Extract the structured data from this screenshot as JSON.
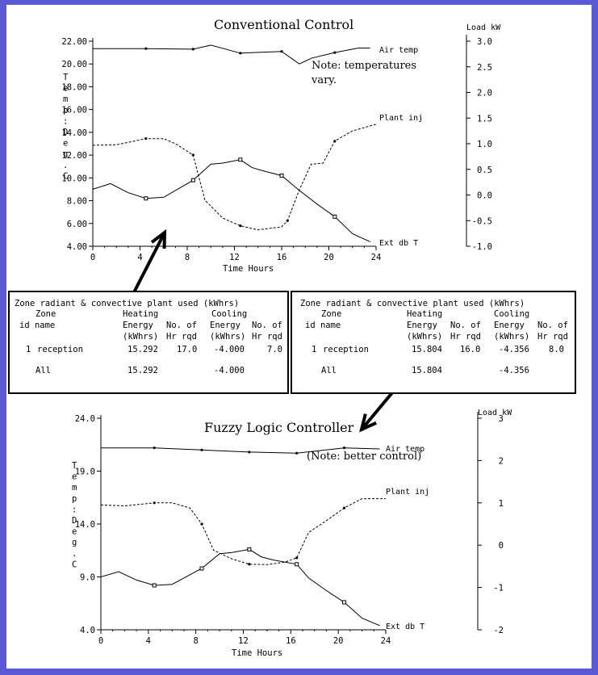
{
  "colors": {
    "background": "#5a5ad6",
    "panel": "#ffffff",
    "ink": "#000000"
  },
  "chart_data": [
    {
      "type": "line",
      "title": "Conventional Control",
      "note": [
        "Note: temperatures",
        "vary."
      ],
      "xlabel": "Time Hours",
      "ylabel": [
        "T",
        "e",
        "m",
        "p",
        ":",
        "D",
        "e",
        "g",
        ".",
        "C"
      ],
      "ylabel_right": "Load kW",
      "xlim": [
        0,
        24
      ],
      "ylim": [
        4.0,
        22.0
      ],
      "ylim_right": [
        -1.0,
        3.0
      ],
      "xticks": [
        "0",
        "4",
        "8",
        "12",
        "16",
        "20",
        "24"
      ],
      "yticks": [
        "4.00",
        "6.00",
        "8.00",
        "10.00",
        "12.00",
        "14.00",
        "16.00",
        "18.00",
        "20.00",
        "22.00"
      ],
      "yticks_right": [
        "-1.0",
        "-0.5",
        "0.0",
        "0.5",
        "1.0",
        "1.5",
        "2.0",
        "2.5",
        "3.0"
      ],
      "series": [
        {
          "name": "Air temp",
          "axis": "left",
          "style": "solid",
          "marker": "dot",
          "x": [
            0,
            4.5,
            8.5,
            10,
            12.5,
            16,
            17.5,
            18.5,
            20.5,
            22.5,
            23.5
          ],
          "y": [
            21.35,
            21.35,
            21.3,
            21.65,
            20.95,
            21.1,
            20.0,
            20.5,
            21.0,
            21.4,
            21.4
          ],
          "markers_x": [
            4.5,
            8.5,
            12.5,
            16,
            20.5
          ]
        },
        {
          "name": "Plant inj",
          "axis": "right",
          "style": "dashed",
          "marker": "dot",
          "x": [
            0,
            2,
            4.5,
            6,
            7,
            8.5,
            9.5,
            11,
            12.5,
            14,
            16,
            16.5,
            17.5,
            18.5,
            19.5,
            20.5,
            22,
            24
          ],
          "y": [
            0.97,
            0.98,
            1.1,
            1.1,
            1.0,
            0.78,
            -0.1,
            -0.45,
            -0.6,
            -0.68,
            -0.62,
            -0.5,
            0.1,
            0.6,
            0.62,
            1.05,
            1.25,
            1.38
          ],
          "markers_x": [
            4.5,
            8.5,
            12.5,
            16.5,
            20.5
          ]
        },
        {
          "name": "Ext db T",
          "axis": "left",
          "style": "solid",
          "marker": "square",
          "x": [
            0,
            1.5,
            3,
            4.5,
            6,
            7,
            8.5,
            10,
            11,
            12.5,
            13.5,
            14.5,
            16,
            17.5,
            19,
            20.5,
            22,
            23.5
          ],
          "y": [
            9.0,
            9.5,
            8.7,
            8.2,
            8.3,
            8.9,
            9.8,
            11.2,
            11.3,
            11.6,
            10.9,
            10.6,
            10.2,
            8.9,
            7.7,
            6.6,
            5.1,
            4.4
          ],
          "markers_x": [
            4.5,
            8.5,
            12.5,
            16,
            20.5
          ]
        }
      ]
    },
    {
      "type": "line",
      "title": "Fuzzy Logic Controller",
      "note": [
        "(Note: better control)"
      ],
      "xlabel": "Time Hours",
      "ylabel": [
        "T",
        "e",
        "m",
        "p",
        ":",
        "D",
        "e",
        "g",
        ".",
        "C"
      ],
      "ylabel_right": "Load kW",
      "xlim": [
        0,
        24
      ],
      "ylim": [
        4.0,
        24.0
      ],
      "ylim_right": [
        -2,
        3
      ],
      "xticks": [
        "0",
        "4",
        "8",
        "12",
        "16",
        "20",
        "24"
      ],
      "yticks": [
        "4.0",
        "9.0",
        "14.0",
        "19.0",
        "24.0"
      ],
      "yticks_right": [
        "-2",
        "-1",
        "0",
        "1",
        "2",
        "3"
      ],
      "series": [
        {
          "name": "Air temp",
          "axis": "left",
          "style": "solid",
          "marker": "dot",
          "x": [
            0,
            4.5,
            8.5,
            12.5,
            16.5,
            20.5,
            23.5
          ],
          "y": [
            21.2,
            21.2,
            21.0,
            20.8,
            20.7,
            21.2,
            21.1
          ],
          "markers_x": [
            4.5,
            8.5,
            12.5,
            16.5,
            20.5
          ]
        },
        {
          "name": "Plant inj",
          "axis": "right",
          "style": "dashed",
          "marker": "dot",
          "x": [
            0,
            2,
            4.5,
            6,
            7.5,
            8.5,
            9.5,
            11,
            12.5,
            14,
            15.5,
            16.5,
            17.5,
            19,
            20.5,
            22,
            24
          ],
          "y": [
            0.95,
            0.93,
            1.0,
            1.0,
            0.88,
            0.5,
            -0.12,
            -0.32,
            -0.45,
            -0.46,
            -0.4,
            -0.3,
            0.3,
            0.58,
            0.88,
            1.1,
            1.1
          ],
          "markers_x": [
            4.5,
            8.5,
            12.5,
            16.5,
            20.5
          ]
        },
        {
          "name": "Ext db T",
          "axis": "left",
          "style": "solid",
          "marker": "square",
          "x": [
            0,
            1.5,
            3,
            4.5,
            6,
            7,
            8.5,
            10,
            11,
            12.5,
            13.5,
            14.5,
            16.5,
            17.5,
            19,
            20.5,
            22,
            23.5
          ],
          "y": [
            9.0,
            9.5,
            8.7,
            8.2,
            8.3,
            8.9,
            9.8,
            11.2,
            11.3,
            11.6,
            10.9,
            10.6,
            10.2,
            8.9,
            7.7,
            6.6,
            5.1,
            4.4
          ],
          "markers_x": [
            4.5,
            8.5,
            12.5,
            16.5,
            20.5
          ]
        }
      ]
    }
  ],
  "tables": [
    {
      "title": "Zone radiant & convective plant used (kWhrs)",
      "header_lines": [
        [
          "Zone",
          "",
          "Heating",
          "",
          "Cooling",
          ""
        ],
        [
          "id name",
          "",
          "Energy",
          "No. of",
          "Energy",
          "No. of"
        ],
        [
          "",
          "",
          "(kWhrs)",
          "Hr rqd",
          "(kWhrs)",
          "Hr rqd"
        ]
      ],
      "rows": [
        {
          "id": "1",
          "name": "reception",
          "heat_energy": "15.292",
          "heat_hours": "17.0",
          "cool_energy": "-4.000",
          "cool_hours": "7.0"
        }
      ],
      "total": {
        "label": "All",
        "heat_energy": "15.292",
        "cool_energy": "-4.000"
      }
    },
    {
      "title": "Zone radiant & convective plant used (kWhrs)",
      "header_lines": [
        [
          "Zone",
          "",
          "Heating",
          "",
          "Cooling",
          ""
        ],
        [
          "id name",
          "",
          "Energy",
          "No. of",
          "Energy",
          "No. of"
        ],
        [
          "",
          "",
          "(kWhrs)",
          "Hr rqd",
          "(kWhrs)",
          "Hr rqd"
        ]
      ],
      "rows": [
        {
          "id": "1",
          "name": "reception",
          "heat_energy": "15.804",
          "heat_hours": "16.0",
          "cool_energy": "-4.356",
          "cool_hours": "8.0"
        }
      ],
      "total": {
        "label": "All",
        "heat_energy": "15.804",
        "cool_energy": "-4.356"
      }
    }
  ]
}
